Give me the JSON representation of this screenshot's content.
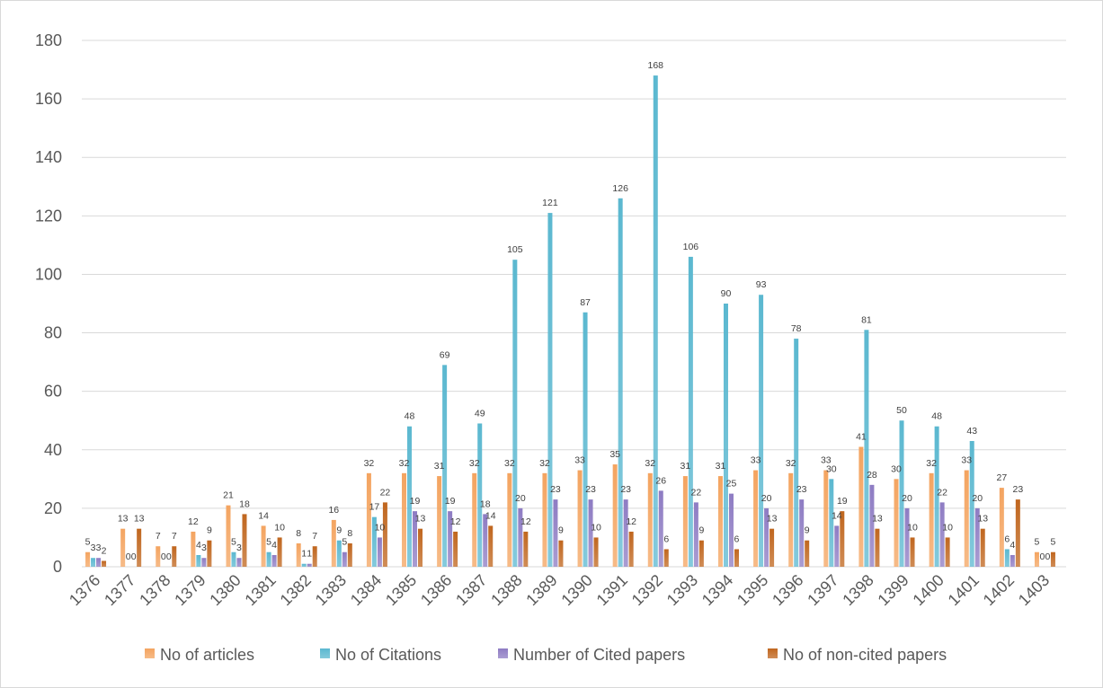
{
  "chart_data": {
    "type": "bar",
    "categories": [
      "1376",
      "1377",
      "1378",
      "1379",
      "1380",
      "1381",
      "1382",
      "1383",
      "1384",
      "1385",
      "1386",
      "1387",
      "1388",
      "1389",
      "1390",
      "1391",
      "1392",
      "1393",
      "1394",
      "1395",
      "1396",
      "1397",
      "1398",
      "1399",
      "1400",
      "1401",
      "1402",
      "1403"
    ],
    "series": [
      {
        "name": "No of articles",
        "color": "#F4A460",
        "values": [
          5,
          13,
          7,
          12,
          21,
          14,
          8,
          16,
          32,
          32,
          31,
          32,
          32,
          32,
          33,
          35,
          32,
          31,
          31,
          33,
          32,
          33,
          41,
          30,
          32,
          33,
          27,
          5
        ]
      },
      {
        "name": "No of Citations",
        "color": "#5BB8D0",
        "values": [
          3,
          0,
          0,
          4,
          5,
          5,
          1,
          9,
          17,
          48,
          69,
          49,
          105,
          121,
          87,
          126,
          168,
          106,
          90,
          93,
          78,
          30,
          81,
          50,
          48,
          43,
          6,
          0
        ]
      },
      {
        "name": "Number of Cited papers",
        "color": "#8E7CC3",
        "values": [
          3,
          0,
          0,
          3,
          3,
          4,
          1,
          5,
          10,
          19,
          19,
          18,
          20,
          23,
          23,
          23,
          26,
          22,
          25,
          20,
          23,
          14,
          28,
          20,
          22,
          20,
          4,
          0
        ]
      },
      {
        "name": "No of non-cited papers",
        "color": "#C0661E",
        "values": [
          2,
          13,
          7,
          9,
          18,
          10,
          7,
          8,
          22,
          13,
          12,
          14,
          12,
          9,
          10,
          12,
          6,
          9,
          6,
          13,
          9,
          19,
          13,
          10,
          10,
          13,
          23,
          5
        ]
      }
    ],
    "ylim": [
      0,
      180
    ],
    "yticks": [
      0,
      20,
      40,
      60,
      80,
      100,
      120,
      140,
      160,
      180
    ],
    "grid": "horizontal",
    "legend": "bottom",
    "data_labels": true
  }
}
